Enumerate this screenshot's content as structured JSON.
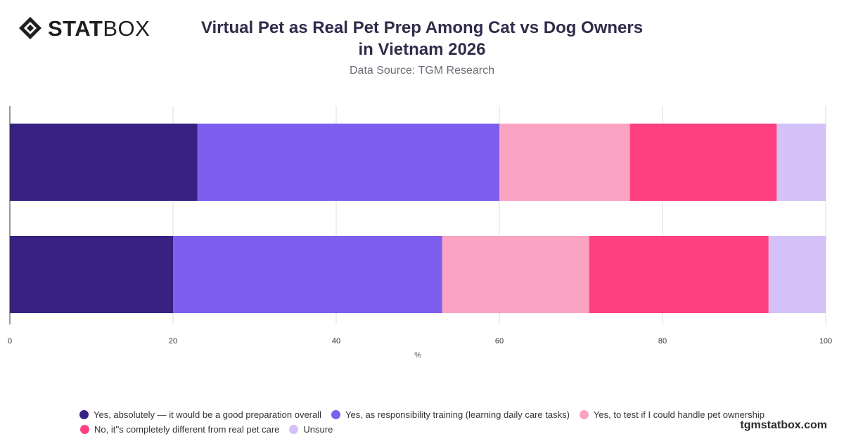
{
  "brand": {
    "strong": "STAT",
    "light": "BOX"
  },
  "header": {
    "title_line1": "Virtual Pet as Real Pet Prep Among Cat vs Dog Owners",
    "title_line2": "in Vietnam 2026",
    "subtitle": "Data Source: TGM Research"
  },
  "watermark": "tgmstatbox.com",
  "chart_data": {
    "type": "bar",
    "orientation": "horizontal",
    "stacked": true,
    "categories": [
      "",
      ""
    ],
    "xlabel": "%",
    "xlim": [
      0,
      100
    ],
    "xticks": [
      0,
      20,
      40,
      60,
      80,
      100
    ],
    "grid": true,
    "legend_position": "bottom",
    "series": [
      {
        "name": "Yes, absolutely — it would be a good preparation overall",
        "color": "#372182",
        "values": [
          23,
          20
        ]
      },
      {
        "name": "Yes, as responsibility training (learning daily care tasks)",
        "color": "#7d5eef",
        "values": [
          37,
          33
        ]
      },
      {
        "name": "Yes, to test if I could handle pet ownership",
        "color": "#fba3c3",
        "values": [
          16,
          18
        ]
      },
      {
        "name": "No, it''s completely different from real pet care",
        "color": "#ff4080",
        "values": [
          18,
          22
        ]
      },
      {
        "name": "Unsure",
        "color": "#d4c1f7",
        "values": [
          6,
          7
        ]
      }
    ]
  }
}
